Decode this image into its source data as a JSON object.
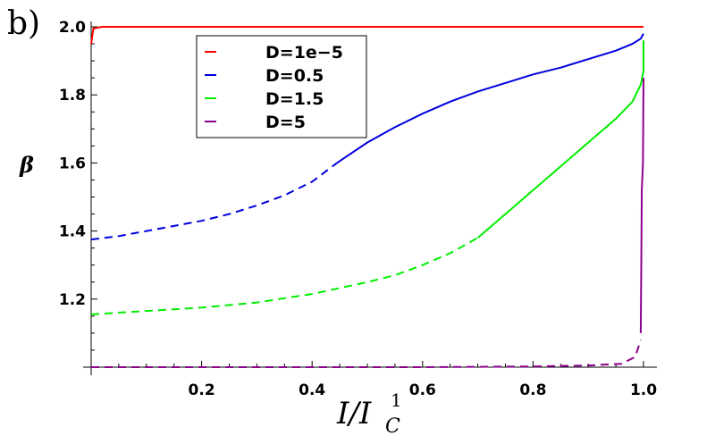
{
  "panel_label": "b)",
  "chart_data": {
    "type": "line",
    "title": "",
    "xlabel": {
      "base": "I/I",
      "sub": "C",
      "sup": "1"
    },
    "ylabel": "β",
    "xlim": [
      0,
      1.0
    ],
    "ylim": [
      1.0,
      2.0
    ],
    "x_ticks": [
      "0.2",
      "0.4",
      "0.6",
      "0.8",
      "1.0"
    ],
    "x_tick_values": [
      0.2,
      0.4,
      0.6,
      0.8,
      1.0
    ],
    "y_ticks": [
      "1.2",
      "1.4",
      "1.6",
      "1.8",
      "2.0"
    ],
    "y_tick_values": [
      1.2,
      1.4,
      1.6,
      1.8,
      2.0
    ],
    "legend_position": "top-center",
    "grid": false,
    "series": [
      {
        "name": "D=1e−5",
        "color": "#ff0000",
        "dashed": [],
        "solid": [
          [
            0.0,
            1.95
          ],
          [
            0.004,
            1.995
          ],
          [
            0.02,
            2.0
          ],
          [
            0.2,
            2.0
          ],
          [
            0.5,
            2.0
          ],
          [
            0.8,
            2.0
          ],
          [
            1.0,
            2.0
          ]
        ]
      },
      {
        "name": "D=0.5",
        "color": "#0000dd",
        "dashed": [
          [
            0.0,
            1.375
          ],
          [
            0.05,
            1.385
          ],
          [
            0.1,
            1.4
          ],
          [
            0.15,
            1.415
          ],
          [
            0.2,
            1.43
          ],
          [
            0.25,
            1.45
          ],
          [
            0.3,
            1.475
          ],
          [
            0.35,
            1.505
          ],
          [
            0.4,
            1.545
          ],
          [
            0.445,
            1.6
          ]
        ],
        "solid": [
          [
            0.445,
            1.6
          ],
          [
            0.5,
            1.66
          ],
          [
            0.55,
            1.705
          ],
          [
            0.6,
            1.745
          ],
          [
            0.65,
            1.78
          ],
          [
            0.7,
            1.81
          ],
          [
            0.75,
            1.835
          ],
          [
            0.8,
            1.86
          ],
          [
            0.85,
            1.88
          ],
          [
            0.9,
            1.905
          ],
          [
            0.95,
            1.93
          ],
          [
            0.98,
            1.95
          ],
          [
            0.995,
            1.965
          ],
          [
            1.0,
            1.98
          ]
        ]
      },
      {
        "name": "D=1.5",
        "color": "#00ee00",
        "dashed": [
          [
            0.0,
            1.155
          ],
          [
            0.1,
            1.165
          ],
          [
            0.2,
            1.175
          ],
          [
            0.3,
            1.19
          ],
          [
            0.4,
            1.215
          ],
          [
            0.5,
            1.25
          ],
          [
            0.55,
            1.27
          ],
          [
            0.6,
            1.3
          ],
          [
            0.65,
            1.335
          ],
          [
            0.7,
            1.38
          ]
        ],
        "solid": [
          [
            0.7,
            1.38
          ],
          [
            0.75,
            1.45
          ],
          [
            0.8,
            1.52
          ],
          [
            0.85,
            1.59
          ],
          [
            0.9,
            1.66
          ],
          [
            0.95,
            1.73
          ],
          [
            0.98,
            1.78
          ],
          [
            0.995,
            1.83
          ],
          [
            1.0,
            1.87
          ],
          [
            1.0,
            1.96
          ]
        ]
      },
      {
        "name": "D=5",
        "color": "#8b008b",
        "dashed": [
          [
            0.0,
            1.0
          ],
          [
            0.3,
            1.0
          ],
          [
            0.6,
            1.0
          ],
          [
            0.8,
            1.002
          ],
          [
            0.9,
            1.005
          ],
          [
            0.96,
            1.01
          ],
          [
            0.985,
            1.03
          ],
          [
            0.995,
            1.08
          ]
        ],
        "solid": [
          [
            0.995,
            1.1
          ],
          [
            0.996,
            1.3
          ],
          [
            0.997,
            1.52
          ],
          [
            0.999,
            1.6
          ],
          [
            1.0,
            1.85
          ]
        ]
      }
    ]
  }
}
